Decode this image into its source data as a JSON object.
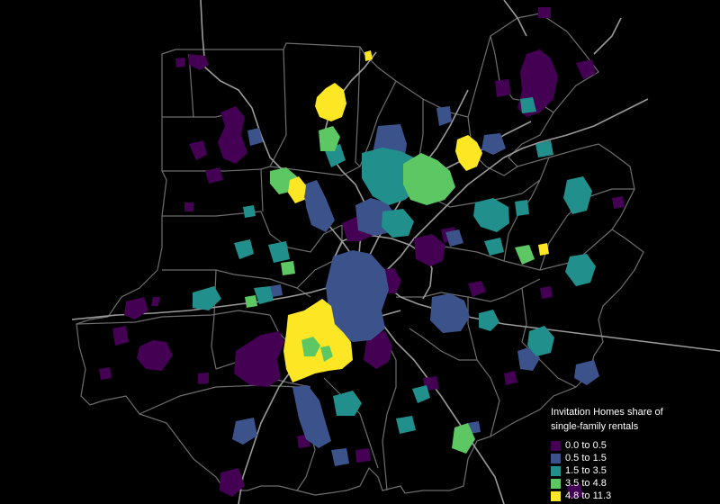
{
  "legend": {
    "title_line1": "Invitation Homes share of",
    "title_line2": "single-family rentals",
    "classes": [
      {
        "label": "0.0 to 0.5",
        "color": "#440154"
      },
      {
        "label": "0.5 to 1.5",
        "color": "#3b528b"
      },
      {
        "label": "1.5 to 3.5",
        "color": "#21908c"
      },
      {
        "label": "3.5 to 4.8",
        "color": "#5dc863"
      },
      {
        "label": "4.8 to 11.3",
        "color": "#fde725"
      }
    ]
  },
  "colors": {
    "background": "#000000",
    "county_border": "#6e6e6e",
    "road": "#9a9a9a"
  }
}
